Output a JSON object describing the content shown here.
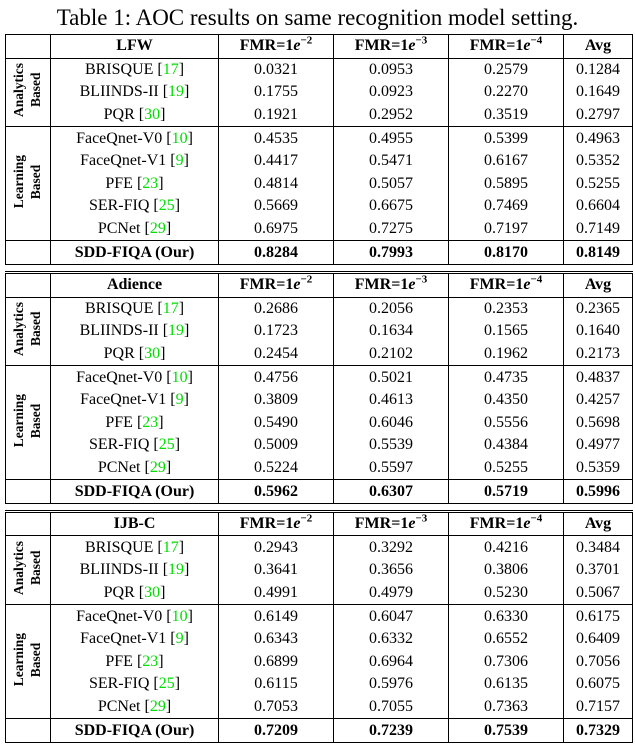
{
  "title": "Table 1: AOC results on same recognition model setting.",
  "colors": {
    "citation": "#00DD00",
    "text": "#000000",
    "background": "#FFFFFF"
  },
  "col_headers": [
    {
      "base": "FMR=1",
      "e": "e",
      "exp": "−2"
    },
    {
      "base": "FMR=1",
      "e": "e",
      "exp": "−3"
    },
    {
      "base": "FMR=1",
      "e": "e",
      "exp": "−4"
    }
  ],
  "avg_header": "Avg",
  "tables": [
    {
      "dataset": "LFW",
      "groups": [
        {
          "key": "analytics",
          "label": "Analytics\nBased",
          "rows": [
            {
              "method": "BRISQUE",
              "cite": "17",
              "values": [
                "0.0321",
                "0.0953",
                "0.2579",
                "0.1284"
              ]
            },
            {
              "method": "BLIINDS-II",
              "cite": "19",
              "values": [
                "0.1755",
                "0.0923",
                "0.2270",
                "0.1649"
              ]
            },
            {
              "method": "PQR",
              "cite": "30",
              "values": [
                "0.1921",
                "0.2952",
                "0.3519",
                "0.2797"
              ]
            }
          ]
        },
        {
          "key": "learning",
          "label": "Learning\nBased",
          "rows": [
            {
              "method": "FaceQnet-V0",
              "cite": "10",
              "values": [
                "0.4535",
                "0.4955",
                "0.5399",
                "0.4963"
              ]
            },
            {
              "method": "FaceQnet-V1",
              "cite": "9",
              "values": [
                "0.4417",
                "0.5471",
                "0.6167",
                "0.5352"
              ]
            },
            {
              "method": "PFE",
              "cite": "23",
              "values": [
                "0.4814",
                "0.5057",
                "0.5895",
                "0.5255"
              ]
            },
            {
              "method": "SER-FIQ",
              "cite": "25",
              "values": [
                "0.5669",
                "0.6675",
                "0.7469",
                "0.6604"
              ]
            },
            {
              "method": "PCNet",
              "cite": "29",
              "values": [
                "0.6975",
                "0.7275",
                "0.7197",
                "0.7149"
              ]
            }
          ]
        }
      ],
      "ours": {
        "method": "SDD-FIQA (Our)",
        "values": [
          "0.8284",
          "0.7993",
          "0.8170",
          "0.8149"
        ]
      }
    },
    {
      "dataset": "Adience",
      "groups": [
        {
          "key": "analytics",
          "label": "Analytics\nBased",
          "rows": [
            {
              "method": "BRISQUE",
              "cite": "17",
              "values": [
                "0.2686",
                "0.2056",
                "0.2353",
                "0.2365"
              ]
            },
            {
              "method": "BLIINDS-II",
              "cite": "19",
              "values": [
                "0.1723",
                "0.1634",
                "0.1565",
                "0.1640"
              ]
            },
            {
              "method": "PQR",
              "cite": "30",
              "values": [
                "0.2454",
                "0.2102",
                "0.1962",
                "0.2173"
              ]
            }
          ]
        },
        {
          "key": "learning",
          "label": "Learning\nBased",
          "rows": [
            {
              "method": "FaceQnet-V0",
              "cite": "10",
              "values": [
                "0.4756",
                "0.5021",
                "0.4735",
                "0.4837"
              ]
            },
            {
              "method": "FaceQnet-V1",
              "cite": "9",
              "values": [
                "0.3809",
                "0.4613",
                "0.4350",
                "0.4257"
              ]
            },
            {
              "method": "PFE",
              "cite": "23",
              "values": [
                "0.5490",
                "0.6046",
                "0.5556",
                "0.5698"
              ]
            },
            {
              "method": "SER-FIQ",
              "cite": "25",
              "values": [
                "0.5009",
                "0.5539",
                "0.4384",
                "0.4977"
              ]
            },
            {
              "method": "PCNet",
              "cite": "29",
              "values": [
                "0.5224",
                "0.5597",
                "0.5255",
                "0.5359"
              ]
            }
          ]
        }
      ],
      "ours": {
        "method": "SDD-FIQA (Our)",
        "values": [
          "0.5962",
          "0.6307",
          "0.5719",
          "0.5996"
        ]
      }
    },
    {
      "dataset": "IJB-C",
      "groups": [
        {
          "key": "analytics",
          "label": "Analytics\nBased",
          "rows": [
            {
              "method": "BRISQUE",
              "cite": "17",
              "values": [
                "0.2943",
                "0.3292",
                "0.4216",
                "0.3484"
              ]
            },
            {
              "method": "BLIINDS-II",
              "cite": "19",
              "values": [
                "0.3641",
                "0.3656",
                "0.3806",
                "0.3701"
              ]
            },
            {
              "method": "PQR",
              "cite": "30",
              "values": [
                "0.4991",
                "0.4979",
                "0.5230",
                "0.5067"
              ]
            }
          ]
        },
        {
          "key": "learning",
          "label": "Learning\nBased",
          "rows": [
            {
              "method": "FaceQnet-V0",
              "cite": "10",
              "values": [
                "0.6149",
                "0.6047",
                "0.6330",
                "0.6175"
              ]
            },
            {
              "method": "FaceQnet-V1",
              "cite": "9",
              "values": [
                "0.6343",
                "0.6332",
                "0.6552",
                "0.6409"
              ]
            },
            {
              "method": "PFE",
              "cite": "23",
              "values": [
                "0.6899",
                "0.6964",
                "0.7306",
                "0.7056"
              ]
            },
            {
              "method": "SER-FIQ",
              "cite": "25",
              "values": [
                "0.6115",
                "0.5976",
                "0.6135",
                "0.6075"
              ]
            },
            {
              "method": "PCNet",
              "cite": "29",
              "values": [
                "0.7053",
                "0.7055",
                "0.7363",
                "0.7157"
              ]
            }
          ]
        }
      ],
      "ours": {
        "method": "SDD-FIQA (Our)",
        "values": [
          "0.7209",
          "0.7239",
          "0.7539",
          "0.7329"
        ]
      }
    }
  ]
}
